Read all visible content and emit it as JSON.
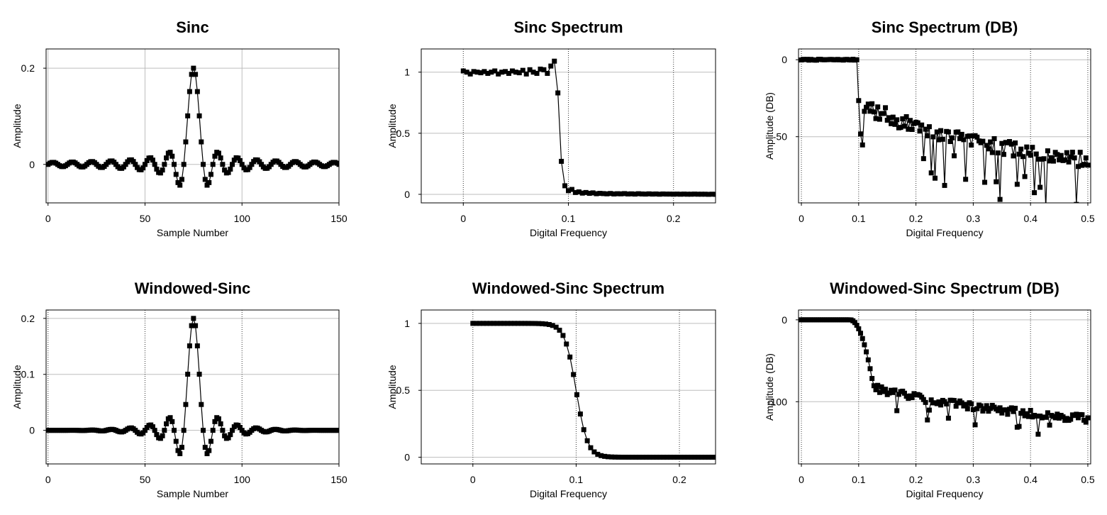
{
  "colors": {
    "line": "#000000",
    "grid": "#bdbdbd",
    "axis": "#000000",
    "background": "#ffffff"
  },
  "chart_data": [
    {
      "type": "line",
      "title": "Sinc",
      "xlabel": "Sample Number",
      "ylabel": "Amplitude",
      "xlim": [
        -1,
        150
      ],
      "ylim": [
        -0.08,
        0.24
      ],
      "xticks": [
        0,
        50,
        100,
        150
      ],
      "yticks": [
        0,
        0.2
      ],
      "ytick_labels": [
        "0",
        "0.2"
      ],
      "grid_style": "solid",
      "marker": "square",
      "generator": {
        "kind": "sinc",
        "n": 151,
        "center": 75,
        "fc": 0.1
      }
    },
    {
      "type": "line",
      "title": "Sinc Spectrum",
      "xlabel": "Digital Frequency",
      "ylabel": "Amplitude",
      "xlim": [
        -0.04,
        0.24
      ],
      "ylim": [
        -0.07,
        1.19
      ],
      "xticks": [
        0,
        0.1,
        0.2
      ],
      "yticks": [
        0,
        0.5,
        1
      ],
      "ytick_labels": [
        "0",
        "0.5",
        "1"
      ],
      "grid_style": "dotted",
      "marker": "square",
      "series": [
        {
          "x": [
            0.0,
            0.00333,
            0.00667,
            0.01,
            0.01333,
            0.01667,
            0.02,
            0.02333,
            0.02667,
            0.03,
            0.03333,
            0.03667,
            0.04,
            0.04333,
            0.04667,
            0.05,
            0.05333,
            0.05667,
            0.06,
            0.06333,
            0.06667,
            0.07,
            0.07333,
            0.07667,
            0.08,
            0.08333,
            0.08667,
            0.09,
            0.09333,
            0.09667,
            0.1,
            0.10333,
            0.10667,
            0.11,
            0.11333,
            0.11667,
            0.12,
            0.12333,
            0.12667,
            0.13,
            0.13333,
            0.13667,
            0.14,
            0.14333,
            0.14667,
            0.15,
            0.15333,
            0.15667,
            0.16,
            0.16333,
            0.16667,
            0.17,
            0.17333,
            0.17667,
            0.18,
            0.18333,
            0.18667,
            0.19,
            0.19333,
            0.19667,
            0.2,
            0.20333,
            0.20667,
            0.21,
            0.21333,
            0.21667,
            0.22,
            0.22333,
            0.22667,
            0.23,
            0.23333,
            0.23667,
            0.24
          ],
          "y": [
            1.01,
            1.0,
            0.985,
            1.005,
            1.0,
            0.995,
            1.005,
            0.99,
            1.0,
            1.01,
            0.985,
            1.0,
            1.005,
            0.99,
            1.01,
            1.0,
            0.995,
            1.015,
            0.985,
            1.02,
            1.0,
            0.99,
            1.025,
            1.02,
            0.99,
            1.05,
            1.09,
            0.83,
            0.27,
            0.07,
            0.03,
            0.04,
            0.015,
            0.02,
            0.01,
            0.015,
            0.008,
            0.012,
            0.005,
            0.008,
            0.006,
            0.004,
            0.007,
            0.003,
            0.005,
            0.004,
            0.006,
            0.003,
            0.004,
            0.002,
            0.005,
            0.003,
            0.002,
            0.004,
            0.002,
            0.003,
            0.001,
            0.003,
            0.002,
            0.002,
            0.001,
            0.002,
            0.001,
            0.002,
            0.001,
            0.001,
            0.002,
            0.001,
            0.001,
            0.001,
            0.0,
            0.001,
            0.0
          ]
        }
      ]
    },
    {
      "type": "line",
      "title": "Sinc Spectrum (DB)",
      "xlabel": "Digital Frequency",
      "ylabel": "Amplitude (DB)",
      "xlim": [
        -0.005,
        0.505
      ],
      "ylim": [
        -93,
        7
      ],
      "xticks": [
        0,
        0.1,
        0.2,
        0.3,
        0.4,
        0.5
      ],
      "yticks": [
        -50,
        0
      ],
      "ytick_labels": [
        "-50",
        "0"
      ],
      "grid_style": "dotted",
      "marker": "square",
      "generator": {
        "kind": "db_sinc",
        "n": 151,
        "seed": 7
      }
    },
    {
      "type": "line",
      "title": "Windowed-Sinc",
      "xlabel": "Sample Number",
      "ylabel": "Amplitude",
      "xlim": [
        -1,
        150
      ],
      "ylim": [
        -0.06,
        0.215
      ],
      "xticks": [
        0,
        50,
        100,
        150
      ],
      "yticks": [
        0,
        0.1,
        0.2
      ],
      "ytick_labels": [
        "0",
        "0.1",
        "0.2"
      ],
      "grid_style": "dotted",
      "marker": "square",
      "generator": {
        "kind": "windowed_sinc",
        "n": 151,
        "center": 75,
        "fc": 0.1
      }
    },
    {
      "type": "line",
      "title": "Windowed-Sinc Spectrum",
      "xlabel": "Digital Frequency",
      "ylabel": "Amplitude",
      "xlim": [
        -0.05,
        0.235
      ],
      "ylim": [
        -0.05,
        1.1
      ],
      "xticks": [
        0,
        0.1,
        0.2
      ],
      "yticks": [
        0,
        0.5,
        1
      ],
      "ytick_labels": [
        "0",
        "0.5",
        "1"
      ],
      "grid_style": "dotted",
      "marker": "square",
      "generator": {
        "kind": "windowed_spectrum",
        "n": 71,
        "x_max": 0.235,
        "fc": 0.1
      }
    },
    {
      "type": "line",
      "title": "Windowed-Sinc Spectrum (DB)",
      "xlabel": "Digital Frequency",
      "ylabel": "Amplitude (DB)",
      "xlim": [
        -0.005,
        0.505
      ],
      "ylim": [
        -176,
        12
      ],
      "xticks": [
        0,
        0.1,
        0.2,
        0.3,
        0.4,
        0.5
      ],
      "yticks": [
        -100,
        0
      ],
      "ytick_labels": [
        "-100",
        "0"
      ],
      "grid_style": "dotted",
      "marker": "square",
      "generator": {
        "kind": "db_windowed",
        "n": 151,
        "seed": 13
      }
    }
  ]
}
